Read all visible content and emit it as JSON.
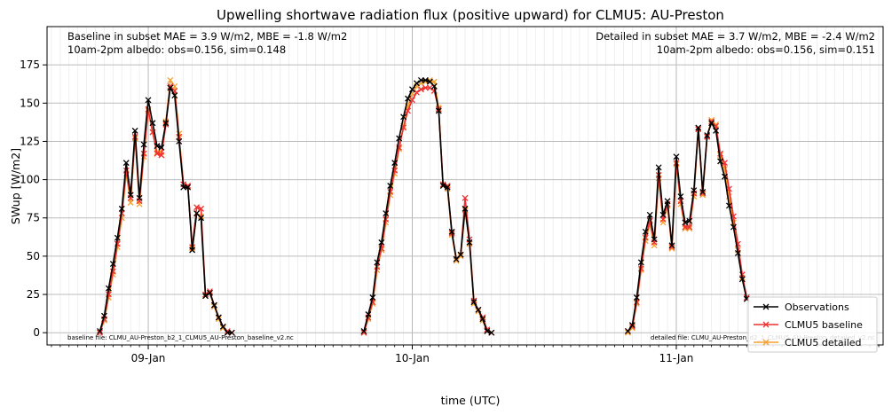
{
  "chart_data": {
    "type": "line",
    "title": "Upwelling shortwave radiation flux (positive upward) for CLMU5: AU-Preston",
    "xlabel": "time (UTC)",
    "ylabel": "SWup [W/m2]",
    "ylim": [
      -8,
      200
    ],
    "xlim_hours": [
      -11.5,
      83.5
    ],
    "yticks": [
      0,
      25,
      50,
      75,
      100,
      125,
      150,
      175
    ],
    "xticks": [
      {
        "label": "09-Jan",
        "hour": 0
      },
      {
        "label": "10-Jan",
        "hour": 30
      },
      {
        "label": "11-Jan",
        "hour": 60
      }
    ],
    "grid": true,
    "legend_position": "bottom-right",
    "annotations": {
      "baseline_stats": "Baseline in subset MAE = 3.9 W/m2, MBE = -1.8 W/m2",
      "baseline_albedo": "10am-2pm albedo: obs=0.156, sim=0.148",
      "detailed_stats": "Detailed in subset MAE = 3.7 W/m2, MBE = -2.4 W/m2",
      "detailed_albedo": "10am-2pm albedo: obs=0.156, sim=0.151",
      "baseline_file": "baseline file: CLMU_AU-Preston_b2_1_CLMU5_AU-Preston_baseline_v2.nc",
      "detailed_file": "detailed file: CLMU_AU-Preston_d2_1_CLMU5_AU-Preston_detailed_v2.nc"
    },
    "series": [
      {
        "name": "Observations",
        "color": "#000000",
        "segments": [
          [
            [
              -5.5,
              1
            ],
            [
              -5,
              11
            ],
            [
              -4.5,
              29
            ],
            [
              -4,
              45
            ],
            [
              -3.5,
              62
            ],
            [
              -3,
              81
            ],
            [
              -2.5,
              111
            ],
            [
              -2,
              90
            ],
            [
              -1.5,
              132
            ],
            [
              -1,
              88
            ],
            [
              -0.5,
              123
            ],
            [
              0,
              152
            ],
            [
              0.5,
              137
            ],
            [
              1,
              122
            ],
            [
              1.5,
              121
            ],
            [
              2,
              137
            ],
            [
              2.5,
              160
            ],
            [
              3,
              155
            ],
            [
              3.5,
              125
            ],
            [
              4,
              95
            ],
            [
              4.5,
              95
            ],
            [
              5,
              54
            ],
            [
              5.5,
              78
            ],
            [
              6,
              75
            ],
            [
              6.5,
              24
            ],
            [
              7,
              26
            ],
            [
              7.5,
              18
            ],
            [
              8,
              10
            ],
            [
              8.5,
              4
            ],
            [
              9,
              0
            ],
            [
              9.5,
              0
            ]
          ],
          [
            [
              24.5,
              1
            ],
            [
              25,
              12
            ],
            [
              25.5,
              23
            ],
            [
              26,
              46
            ],
            [
              26.5,
              59
            ],
            [
              27,
              78
            ],
            [
              27.5,
              96
            ],
            [
              28,
              111
            ],
            [
              28.5,
              127
            ],
            [
              29,
              141
            ],
            [
              29.5,
              153
            ],
            [
              30,
              159
            ],
            [
              30.5,
              163
            ],
            [
              31,
              165
            ],
            [
              31.5,
              165
            ],
            [
              32,
              164
            ],
            [
              32.5,
              161
            ],
            [
              33,
              145
            ],
            [
              33.5,
              96
            ],
            [
              34,
              95
            ],
            [
              34.5,
              66
            ],
            [
              35,
              48
            ],
            [
              35.5,
              51
            ],
            [
              36,
              81
            ],
            [
              36.5,
              59
            ],
            [
              37,
              20
            ],
            [
              37.5,
              15
            ],
            [
              38,
              9
            ],
            [
              38.5,
              1
            ],
            [
              39,
              0
            ]
          ],
          [
            [
              54.5,
              1
            ],
            [
              55,
              5
            ],
            [
              55.5,
              23
            ],
            [
              56,
              46
            ],
            [
              56.5,
              66
            ],
            [
              57,
              77
            ],
            [
              57.5,
              61
            ],
            [
              58,
              108
            ],
            [
              58.5,
              77
            ],
            [
              59,
              86
            ],
            [
              59.5,
              57
            ],
            [
              60,
              115
            ],
            [
              60.5,
              89
            ],
            [
              61,
              72
            ],
            [
              61.5,
              73
            ],
            [
              62,
              93
            ],
            [
              62.5,
              134
            ],
            [
              63,
              92
            ],
            [
              63.5,
              129
            ],
            [
              64,
              137
            ],
            [
              64.5,
              132
            ],
            [
              65,
              112
            ],
            [
              65.5,
              102
            ],
            [
              66,
              83
            ],
            [
              66.5,
              69
            ],
            [
              67,
              52
            ],
            [
              67.5,
              35
            ],
            [
              68,
              22
            ]
          ]
        ]
      },
      {
        "name": "CLMU5 baseline",
        "color": "#ee3030",
        "segments": [
          [
            [
              -5.5,
              0
            ],
            [
              -5,
              9
            ],
            [
              -4.5,
              25
            ],
            [
              -4,
              40
            ],
            [
              -3.5,
              58
            ],
            [
              -3,
              78
            ],
            [
              -2.5,
              106
            ],
            [
              -2,
              88
            ],
            [
              -1.5,
              128
            ],
            [
              -1,
              86
            ],
            [
              -0.5,
              117
            ],
            [
              0,
              146
            ],
            [
              0.5,
              131
            ],
            [
              1,
              117
            ],
            [
              1.5,
              116
            ],
            [
              2,
              136
            ],
            [
              2.5,
              161
            ],
            [
              3,
              158
            ],
            [
              3.5,
              128
            ],
            [
              4,
              97
            ],
            [
              4.5,
              96
            ],
            [
              5,
              56
            ],
            [
              5.5,
              82
            ],
            [
              6,
              81
            ],
            [
              6.5,
              25
            ],
            [
              7,
              27
            ],
            [
              7.5,
              18
            ],
            [
              8,
              10
            ],
            [
              8.5,
              4
            ],
            [
              9,
              1
            ],
            [
              9.5,
              0
            ]
          ],
          [
            [
              24.5,
              0
            ],
            [
              25,
              10
            ],
            [
              25.5,
              20
            ],
            [
              26,
              43
            ],
            [
              26.5,
              55
            ],
            [
              27,
              74
            ],
            [
              27.5,
              92
            ],
            [
              28,
              106
            ],
            [
              28.5,
              121
            ],
            [
              29,
              134
            ],
            [
              29.5,
              145
            ],
            [
              30,
              152
            ],
            [
              30.5,
              157
            ],
            [
              31,
              159
            ],
            [
              31.5,
              160
            ],
            [
              32,
              160
            ],
            [
              32.5,
              158
            ],
            [
              33,
              146
            ],
            [
              33.5,
              97
            ],
            [
              34,
              96
            ],
            [
              34.5,
              65
            ],
            [
              35,
              48
            ],
            [
              35.5,
              51
            ],
            [
              36,
              88
            ],
            [
              36.5,
              61
            ],
            [
              37,
              21
            ],
            [
              37.5,
              15
            ],
            [
              38,
              10
            ],
            [
              38.5,
              2
            ],
            [
              39,
              0
            ]
          ],
          [
            [
              54.5,
              1
            ],
            [
              55,
              4
            ],
            [
              55.5,
              20
            ],
            [
              56,
              42
            ],
            [
              56.5,
              62
            ],
            [
              57,
              73
            ],
            [
              57.5,
              59
            ],
            [
              58,
              103
            ],
            [
              58.5,
              74
            ],
            [
              59,
              84
            ],
            [
              59.5,
              56
            ],
            [
              60,
              111
            ],
            [
              60.5,
              86
            ],
            [
              61,
              69
            ],
            [
              61.5,
              69
            ],
            [
              62,
              91
            ],
            [
              62.5,
              133
            ],
            [
              63,
              91
            ],
            [
              63.5,
              128
            ],
            [
              64,
              138
            ],
            [
              64.5,
              135
            ],
            [
              65,
              117
            ],
            [
              65.5,
              111
            ],
            [
              66,
              94
            ],
            [
              66.5,
              76
            ],
            [
              67,
              58
            ],
            [
              67.5,
              38
            ],
            [
              68,
              23
            ]
          ]
        ]
      },
      {
        "name": "CLMU5 detailed",
        "color": "#f5a030",
        "segments": [
          [
            [
              -5.5,
              0
            ],
            [
              -5,
              8
            ],
            [
              -4.5,
              23
            ],
            [
              -4,
              38
            ],
            [
              -3.5,
              56
            ],
            [
              -3,
              75
            ],
            [
              -2.5,
              104
            ],
            [
              -2,
              85
            ],
            [
              -1.5,
              127
            ],
            [
              -1,
              84
            ],
            [
              -0.5,
              115
            ],
            [
              0,
              145
            ],
            [
              0.5,
              131
            ],
            [
              1,
              118
            ],
            [
              1.5,
              118
            ],
            [
              2,
              138
            ],
            [
              2.5,
              165
            ],
            [
              3,
              161
            ],
            [
              3.5,
              130
            ],
            [
              4,
              97
            ],
            [
              4.5,
              96
            ],
            [
              5,
              55
            ],
            [
              5.5,
              78
            ],
            [
              6,
              76
            ],
            [
              6.5,
              24
            ],
            [
              7,
              26
            ],
            [
              7.5,
              17
            ],
            [
              8,
              9
            ],
            [
              8.5,
              3
            ],
            [
              9,
              0
            ],
            [
              9.5,
              0
            ]
          ],
          [
            [
              24.5,
              0
            ],
            [
              25,
              9
            ],
            [
              25.5,
              19
            ],
            [
              26,
              41
            ],
            [
              26.5,
              54
            ],
            [
              27,
              72
            ],
            [
              27.5,
              90
            ],
            [
              28,
              104
            ],
            [
              28.5,
              120
            ],
            [
              29,
              135
            ],
            [
              29.5,
              148
            ],
            [
              30,
              156
            ],
            [
              30.5,
              161
            ],
            [
              31,
              163
            ],
            [
              31.5,
              164
            ],
            [
              32,
              165
            ],
            [
              32.5,
              164
            ],
            [
              33,
              147
            ],
            [
              33.5,
              96
            ],
            [
              34,
              94
            ],
            [
              34.5,
              64
            ],
            [
              35,
              47
            ],
            [
              35.5,
              50
            ],
            [
              36,
              80
            ],
            [
              36.5,
              58
            ],
            [
              37,
              19
            ],
            [
              37.5,
              14
            ],
            [
              38,
              8
            ],
            [
              38.5,
              1
            ],
            [
              39,
              0
            ]
          ],
          [
            [
              54.5,
              0
            ],
            [
              55,
              3
            ],
            [
              55.5,
              19
            ],
            [
              56,
              41
            ],
            [
              56.5,
              60
            ],
            [
              57,
              71
            ],
            [
              57.5,
              57
            ],
            [
              58,
              101
            ],
            [
              58.5,
              72
            ],
            [
              59,
              83
            ],
            [
              59.5,
              55
            ],
            [
              60,
              110
            ],
            [
              60.5,
              84
            ],
            [
              61,
              68
            ],
            [
              61.5,
              68
            ],
            [
              62,
              89
            ],
            [
              62.5,
              133
            ],
            [
              63,
              90
            ],
            [
              63.5,
              128
            ],
            [
              64,
              139
            ],
            [
              64.5,
              136
            ],
            [
              65,
              116
            ],
            [
              65.5,
              107
            ],
            [
              66,
              89
            ],
            [
              66.5,
              72
            ],
            [
              67,
              54
            ],
            [
              67.5,
              36
            ],
            [
              68,
              22
            ]
          ]
        ]
      }
    ]
  }
}
